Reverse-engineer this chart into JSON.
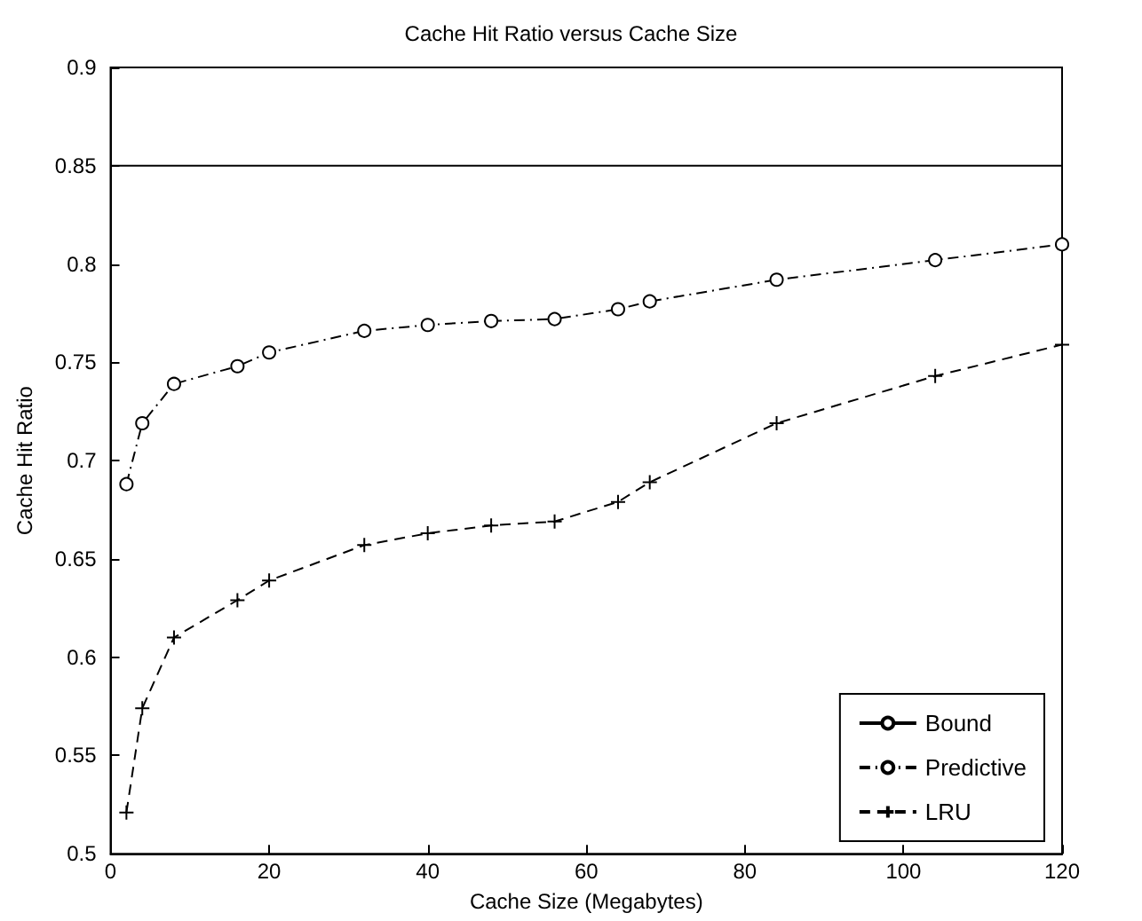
{
  "chart_data": {
    "type": "line",
    "title": "Cache Hit Ratio versus Cache Size",
    "xlabel": "Cache Size (Megabytes)",
    "ylabel": "Cache Hit Ratio",
    "xlim": [
      0,
      120
    ],
    "xticks": [
      0,
      20,
      40,
      60,
      80,
      100,
      120
    ],
    "ylim": [
      0.5,
      0.9
    ],
    "yticks": [
      0.5,
      0.55,
      0.6,
      0.65,
      0.7,
      0.75,
      0.8,
      0.85,
      0.9
    ],
    "grid": false,
    "legend": "bottom right",
    "series": [
      {
        "name": "Bound",
        "color": "#000000",
        "line_style": "solid",
        "marker": "none",
        "x": [
          0,
          120
        ],
        "values": [
          0.85,
          0.85
        ]
      },
      {
        "name": "Predictive",
        "color": "#000000",
        "line_style": "dashdot",
        "marker": "circle",
        "x": [
          2,
          4,
          8,
          16,
          20,
          32,
          40,
          48,
          56,
          64,
          68,
          84,
          104,
          120
        ],
        "values": [
          0.688,
          0.719,
          0.739,
          0.748,
          0.755,
          0.766,
          0.769,
          0.771,
          0.772,
          0.777,
          0.781,
          0.792,
          0.802,
          0.81
        ]
      },
      {
        "name": "LRU",
        "color": "#000000",
        "line_style": "dashed",
        "marker": "cross",
        "x": [
          2,
          4,
          8,
          16,
          20,
          32,
          40,
          48,
          56,
          64,
          68,
          84,
          104,
          120
        ],
        "values": [
          0.521,
          0.574,
          0.61,
          0.629,
          0.639,
          0.657,
          0.663,
          0.667,
          0.669,
          0.679,
          0.689,
          0.719,
          0.743,
          0.759
        ]
      }
    ]
  }
}
